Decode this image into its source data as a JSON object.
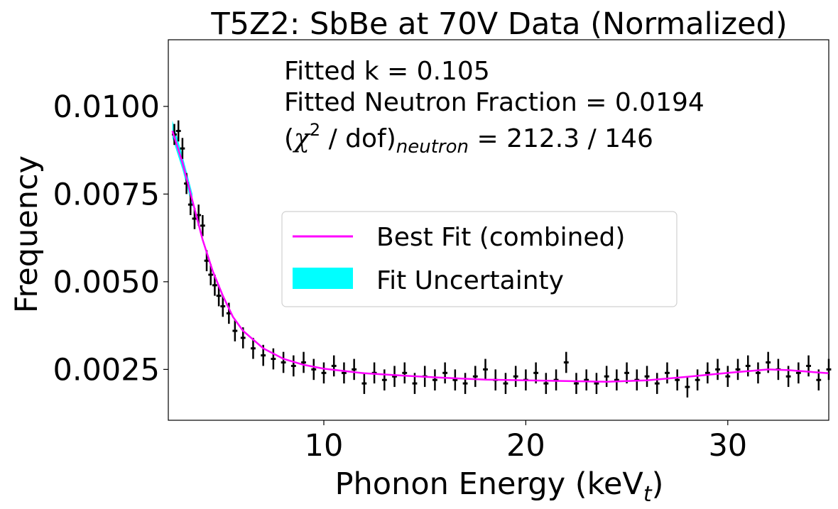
{
  "chart_data": {
    "type": "line",
    "title": "T5Z2: SbBe at 70V Data (Normalized)",
    "xlabel_main": "Phonon Energy (keV",
    "xlabel_sub": "t",
    "xlabel_close": ")",
    "ylabel": "Frequency",
    "xlim": [
      2.3,
      35.0
    ],
    "ylim": [
      0.00105,
      0.0119
    ],
    "xticks": [
      10,
      20,
      30
    ],
    "xtick_labels": [
      "10",
      "20",
      "30"
    ],
    "yticks": [
      0.0025,
      0.005,
      0.0075,
      0.01
    ],
    "ytick_labels": [
      "0.0025",
      "0.0050",
      "0.0075",
      "0.0100"
    ],
    "grid": false,
    "annotations": {
      "line1": "Fitted k = 0.105",
      "line2": "Fitted Neutron Fraction = 0.0194",
      "line3_open": "(",
      "line3_chi": "χ",
      "line3_sup": "2",
      "line3_mid": " / dof)",
      "line3_sub": "neutron",
      "line3_end": " = 212.3 / 146"
    },
    "legend": {
      "placement": "center",
      "entries": [
        {
          "label": "Best Fit (combined)",
          "color": "#ff00ff",
          "kind": "line"
        },
        {
          "label": "Fit Uncertainty",
          "color": "#00ffff",
          "kind": "patch"
        }
      ]
    },
    "series": [
      {
        "name": "Best Fit (combined)",
        "color": "#ff00ff",
        "x": [
          2.5,
          3.0,
          3.5,
          4.0,
          4.5,
          5.0,
          5.5,
          6.0,
          7.0,
          8.0,
          9.0,
          10.0,
          12.0,
          14.0,
          16.0,
          18.0,
          20.0,
          22.0,
          24.0,
          26.0,
          28.0,
          30.0,
          32.0,
          33.0,
          35.0
        ],
        "y": [
          0.0093,
          0.0084,
          0.0073,
          0.0062,
          0.0053,
          0.0046,
          0.004,
          0.0036,
          0.0031,
          0.0028,
          0.00263,
          0.00252,
          0.00239,
          0.00232,
          0.00226,
          0.00221,
          0.00219,
          0.00217,
          0.00215,
          0.00219,
          0.00229,
          0.0024,
          0.0025,
          0.00248,
          0.00239
        ]
      },
      {
        "name": "Fit Uncertainty",
        "color": "#00ffff",
        "x": [
          2.5,
          3.0,
          3.5
        ],
        "lower": [
          0.0091,
          0.0082,
          0.0071
        ],
        "upper": [
          0.0096,
          0.0086,
          0.0075
        ]
      },
      {
        "name": "Data",
        "color": "#000000",
        "x": [
          2.6,
          2.8,
          3.0,
          3.2,
          3.4,
          3.6,
          3.8,
          4.0,
          4.2,
          4.4,
          4.6,
          4.8,
          5.0,
          5.3,
          5.6,
          6.0,
          6.5,
          7.0,
          7.5,
          8.0,
          8.5,
          9.0,
          9.5,
          10.0,
          10.5,
          11.0,
          11.5,
          12.0,
          12.5,
          13.0,
          13.5,
          14.0,
          14.5,
          15.0,
          15.5,
          16.0,
          16.5,
          17.0,
          17.5,
          18.0,
          18.5,
          19.0,
          19.5,
          20.0,
          20.5,
          21.0,
          21.5,
          22.0,
          22.5,
          23.0,
          23.5,
          24.0,
          24.5,
          25.0,
          25.5,
          26.0,
          26.5,
          27.0,
          27.5,
          28.0,
          28.5,
          29.0,
          29.5,
          30.0,
          30.5,
          31.0,
          31.5,
          32.0,
          32.5,
          33.0,
          33.5,
          34.0,
          34.5,
          35.0
        ],
        "y": [
          0.0092,
          0.0093,
          0.0088,
          0.0078,
          0.0072,
          0.0068,
          0.0069,
          0.0066,
          0.0056,
          0.0052,
          0.0049,
          0.0046,
          0.0043,
          0.0041,
          0.0036,
          0.0034,
          0.0031,
          0.0029,
          0.0028,
          0.0027,
          0.0026,
          0.0027,
          0.0025,
          0.0024,
          0.0026,
          0.0024,
          0.0025,
          0.0021,
          0.0024,
          0.0022,
          0.0023,
          0.0024,
          0.0021,
          0.0023,
          0.0022,
          0.0024,
          0.0022,
          0.0021,
          0.0023,
          0.0025,
          0.0022,
          0.0021,
          0.0023,
          0.0022,
          0.0024,
          0.0021,
          0.0022,
          0.0027,
          0.0021,
          0.0022,
          0.0021,
          0.0023,
          0.0022,
          0.0024,
          0.0022,
          0.0023,
          0.0021,
          0.0024,
          0.0022,
          0.002,
          0.0022,
          0.0024,
          0.0025,
          0.0023,
          0.0025,
          0.0026,
          0.0024,
          0.0027,
          0.0025,
          0.0023,
          0.0024,
          0.0026,
          0.0022,
          0.0025
        ],
        "yerr": 0.0003
      }
    ]
  }
}
